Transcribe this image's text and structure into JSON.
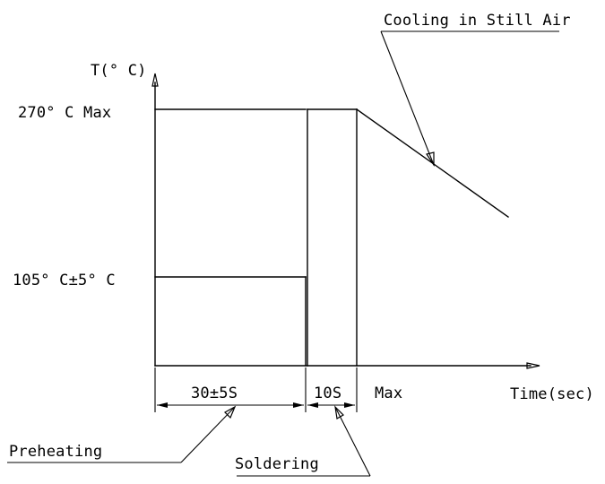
{
  "diagram": {
    "y_axis_label": "T(° C)",
    "x_axis_label": "Time(sec)",
    "temp_max_label": "270° C Max",
    "temp_preheat_label": "105° C±5° C",
    "preheat_duration_label": "30±5S",
    "solder_duration_label": "10S",
    "solder_duration_suffix": "Max",
    "preheating_callout": "Preheating",
    "soldering_callout": "Soldering",
    "cooling_callout": "Cooling in Still Air"
  },
  "colors": {
    "line": "#000000",
    "background": "#ffffff"
  }
}
